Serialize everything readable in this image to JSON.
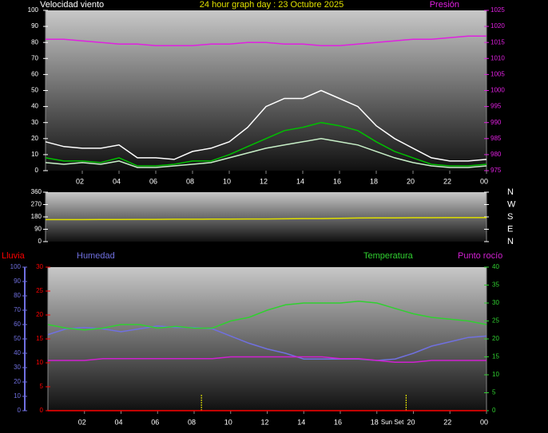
{
  "chart_data": [
    {
      "type": "line",
      "title": "24 hour graph day : 23 Octubre 2025",
      "y_label": "Velocidad viento",
      "y2_label": "Presión",
      "x": [
        0,
        1,
        2,
        3,
        4,
        5,
        6,
        7,
        8,
        9,
        10,
        11,
        12,
        13,
        14,
        15,
        16,
        17,
        18,
        19,
        20,
        21,
        22,
        23,
        24
      ],
      "xlim": [
        0,
        24
      ],
      "xticks": [
        {
          "value": 2,
          "label": "02"
        },
        {
          "value": 4,
          "label": "04"
        },
        {
          "value": 6,
          "label": "06"
        },
        {
          "value": 8,
          "label": "08"
        },
        10,
        12,
        14,
        16,
        18,
        20,
        22,
        {
          "value": 24,
          "label": "00"
        }
      ],
      "ylim": [
        0,
        100
      ],
      "yticks": [
        0,
        10,
        20,
        30,
        40,
        50,
        60,
        70,
        80,
        90,
        100
      ],
      "y2lim": [
        975,
        1025
      ],
      "y2ticks": [
        975,
        980,
        985,
        990,
        995,
        1000,
        1005,
        1010,
        1015,
        1020,
        1025
      ],
      "series": [
        {
          "color": "#ffffff",
          "values": [
            18,
            15,
            14,
            14,
            16,
            8,
            8,
            7,
            12,
            14,
            18,
            27,
            40,
            45,
            45,
            50,
            45,
            40,
            28,
            20,
            14,
            8,
            6,
            6,
            7
          ]
        },
        {
          "color": "#c8f0c8",
          "values": [
            5,
            4,
            5,
            4,
            6,
            2,
            2,
            3,
            4,
            5,
            8,
            11,
            14,
            16,
            18,
            20,
            18,
            16,
            12,
            8,
            5,
            3,
            2,
            2,
            3
          ]
        },
        {
          "color": "#00c000",
          "values": [
            8,
            6,
            6,
            5,
            8,
            3,
            3,
            4,
            6,
            6,
            10,
            15,
            20,
            25,
            27,
            30,
            28,
            25,
            18,
            12,
            8,
            4,
            3,
            3,
            4
          ]
        },
        {
          "color": "#e020e0",
          "axis": "y2",
          "values": [
            1016,
            1016,
            1015.5,
            1015,
            1014.5,
            1014.5,
            1014,
            1014,
            1014,
            1014.5,
            1014.5,
            1015,
            1015,
            1014.5,
            1014.5,
            1014,
            1014,
            1014.5,
            1015,
            1015.5,
            1016,
            1016,
            1016.5,
            1017,
            1017
          ]
        }
      ]
    },
    {
      "type": "line",
      "x": [
        0,
        1,
        2,
        3,
        4,
        5,
        6,
        7,
        8,
        9,
        10,
        11,
        12,
        13,
        14,
        15,
        16,
        17,
        18,
        19,
        20,
        21,
        22,
        23,
        24
      ],
      "xlim": [
        0,
        24
      ],
      "ylim": [
        0,
        360
      ],
      "yticks": [
        0,
        90,
        180,
        270,
        360
      ],
      "y2lim": [
        0,
        360
      ],
      "y2ticks": [
        {
          "value": 0,
          "label": "N"
        },
        {
          "value": 90,
          "label": "E"
        },
        {
          "value": 180,
          "label": "S"
        },
        {
          "value": 270,
          "label": "W"
        },
        {
          "value": 360,
          "label": "N"
        }
      ],
      "series": [
        {
          "color": "#e0e000",
          "values": [
            160,
            160,
            160,
            161,
            161,
            162,
            162,
            163,
            163,
            164,
            164,
            165,
            165,
            166,
            168,
            168,
            170,
            172,
            173,
            173,
            174,
            174,
            175,
            175,
            175
          ]
        }
      ]
    },
    {
      "type": "line",
      "annotation": "Sun Set",
      "sun_markers": {
        "x": [
          8.4,
          19.6
        ],
        "color": "#ffff00"
      },
      "x": [
        0,
        1,
        2,
        3,
        4,
        5,
        6,
        7,
        8,
        9,
        10,
        11,
        12,
        13,
        14,
        15,
        16,
        17,
        18,
        19,
        20,
        21,
        22,
        23,
        24
      ],
      "xlim": [
        0,
        24
      ],
      "xticks": [
        {
          "value": 2,
          "label": "02"
        },
        {
          "value": 4,
          "label": "04"
        },
        {
          "value": 6,
          "label": "06"
        },
        {
          "value": 8,
          "label": "08"
        },
        10,
        12,
        14,
        16,
        18,
        20,
        22,
        {
          "value": 24,
          "label": "00"
        }
      ],
      "ylim": [
        0,
        30
      ],
      "yticks": [
        0,
        5,
        10,
        15,
        20,
        25,
        30
      ],
      "y2lim": [
        0,
        40
      ],
      "y2ticks": [
        0,
        5,
        10,
        15,
        20,
        25,
        30,
        35,
        40
      ],
      "y3lim": [
        0,
        100
      ],
      "y3ticks": [
        0,
        10,
        20,
        30,
        40,
        50,
        60,
        70,
        80,
        90,
        100
      ],
      "series": [
        {
          "name": "Humedad",
          "color": "#7070e0",
          "axis": "y3",
          "values": [
            53,
            57,
            58,
            57,
            55,
            57,
            59,
            58,
            58,
            57,
            52,
            47,
            43,
            40,
            36,
            36,
            36,
            36,
            35,
            36,
            40,
            45,
            48,
            51,
            52
          ]
        },
        {
          "name": "Temperatura",
          "color": "#30d030",
          "axis": "y2",
          "values": [
            24,
            23,
            22.5,
            23,
            24,
            24,
            23,
            23.5,
            23,
            23,
            25,
            26,
            28,
            29.5,
            30,
            30,
            30,
            30.5,
            30,
            28.5,
            27,
            26,
            25.5,
            25,
            24
          ]
        },
        {
          "name": "Punto rocío",
          "color": "#d020d0",
          "axis": "y2",
          "values": [
            14,
            14,
            14,
            14.5,
            14.5,
            14.5,
            14.5,
            14.5,
            14.5,
            14.5,
            15,
            15,
            15,
            15,
            15,
            15,
            14.5,
            14.5,
            14,
            13.5,
            13.5,
            14,
            14,
            14,
            14
          ]
        },
        {
          "name": "Lluvia",
          "color": "#ff0000",
          "values": [
            0,
            0,
            0,
            0,
            0,
            0,
            0,
            0,
            0,
            0,
            0,
            0,
            0,
            0,
            0,
            0,
            0,
            0,
            0,
            0,
            0,
            0,
            0,
            0,
            0
          ]
        }
      ]
    }
  ]
}
